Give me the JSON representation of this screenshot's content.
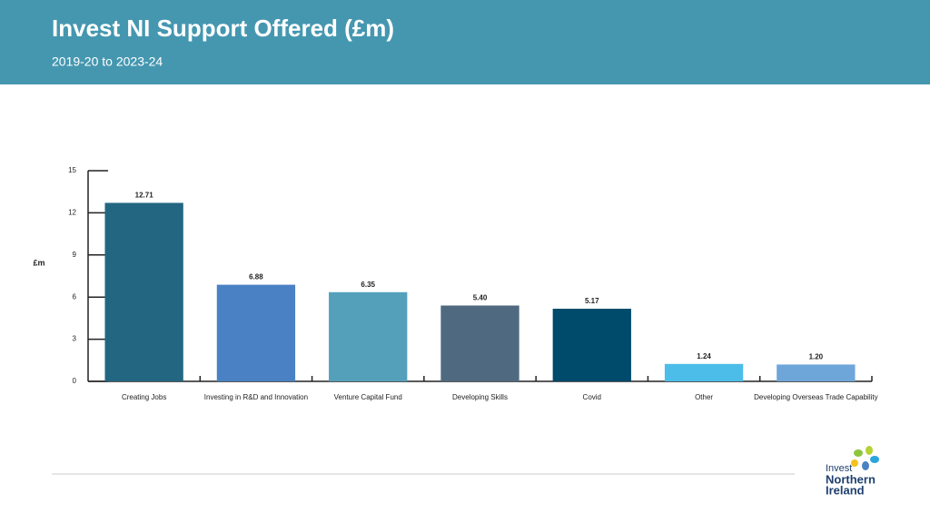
{
  "chart_data": {
    "type": "bar",
    "title": "Invest NI Support Offered (£m)",
    "subtitle": "2019-20 to 2023-24",
    "y_label": "£m",
    "categories": [
      "Creating Jobs",
      "Investing in R&D and Innovation",
      "Venture Capital Fund",
      "Developing Skills",
      "Covid",
      "Other",
      "Developing Overseas Trade Capability"
    ],
    "values": [
      12.71,
      6.88,
      6.35,
      5.4,
      5.17,
      1.24,
      1.2
    ],
    "value_labels": [
      "12.71",
      "6.88",
      "6.35",
      "5.40",
      "5.17",
      "1.24",
      "1.20"
    ],
    "colors": [
      "#236682",
      "#4a81c4",
      "#54a0bb",
      "#4f6a80",
      "#004a6b",
      "#4bbde8",
      "#6fa6d9"
    ],
    "ylim": [
      0,
      15
    ],
    "yticks": [
      0,
      3,
      6,
      9,
      12,
      15
    ],
    "grid": false
  },
  "logo": {
    "lines": [
      "Invest",
      "Northern",
      "Ireland"
    ]
  }
}
